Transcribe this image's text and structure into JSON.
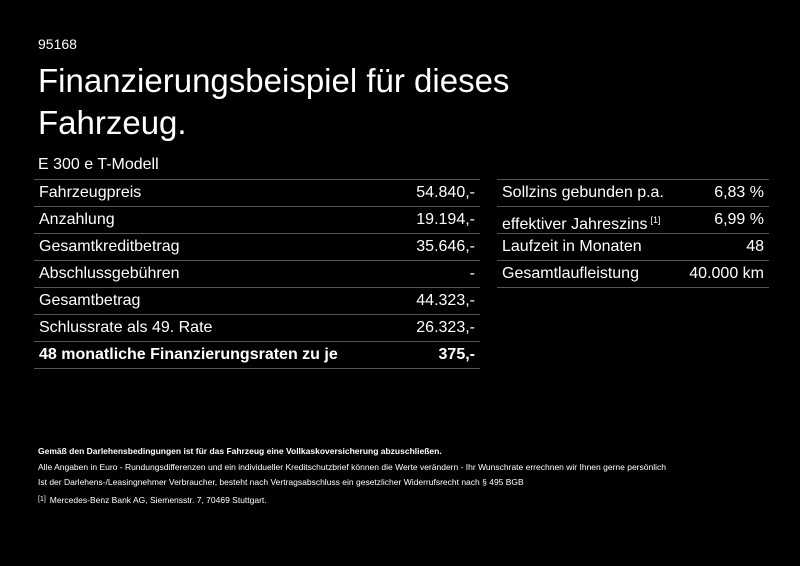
{
  "code": "95168",
  "title": [
    "Finanzierungsbeispiel für dieses",
    "Fahrzeug."
  ],
  "model": "E 300 e T-Modell",
  "left_table": {
    "rows": [
      [
        "Fahrzeugpreis",
        "54.840,-"
      ],
      [
        "Anzahlung",
        "19.194,-"
      ],
      [
        "Gesamtkreditbetrag",
        "35.646,-"
      ],
      [
        "Abschlussgebühren",
        "-"
      ],
      [
        "Gesamtbetrag",
        "44.323,-"
      ],
      [
        "Schlussrate als 49. Rate",
        "26.323,-"
      ],
      [
        "48 monatliche Finanzierungsraten zu je",
        "375,-"
      ]
    ]
  },
  "right_table": {
    "rows": [
      {
        "label": "Sollzins gebunden p.a.",
        "value": "6,83 %"
      },
      {
        "label": "effektiver Jahreszins",
        "note": "[1]",
        "value": "6,99 %"
      },
      {
        "label": "Laufzeit in Monaten",
        "value": "48"
      },
      {
        "label": "Gesamtlaufleistung",
        "value": "40.000 km"
      }
    ]
  },
  "notes": {
    "bold": "Gemäß den Darlehensbedingungen ist für das Fahrzeug eine Vollkaskoversicherung abzuschließen.",
    "lines": [
      "Alle Angaben in Euro - Rundungsdifferenzen und ein individueller Kreditschutzbrief können die Werte verändern - Ihr Wunschrate errechnen wir Ihnen gerne persönlich",
      "Ist der Darlehens-/Leasingnehmer Verbraucher, besteht nach Vertragsabschluss ein gesetzlicher Widerrufsrecht nach § 495 BGB"
    ],
    "footnote": {
      "mark": "[1]",
      "text": "Mercedes-Benz Bank AG, Siemensstr. 7, 70469 Stuttgart."
    }
  }
}
